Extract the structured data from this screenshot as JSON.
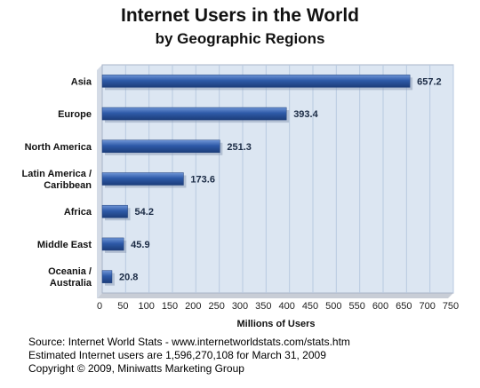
{
  "chart_data": {
    "type": "bar",
    "orientation": "horizontal",
    "title": "Internet Users in the World",
    "subtitle": "by Geographic Regions",
    "xlabel": "Millions of Users",
    "ylabel": "",
    "xlim": [
      0,
      750
    ],
    "x_ticks": [
      0,
      50,
      100,
      150,
      200,
      250,
      300,
      350,
      400,
      450,
      500,
      550,
      600,
      650,
      700,
      750
    ],
    "grid": true,
    "categories": [
      [
        "Asia"
      ],
      [
        "Europe"
      ],
      [
        "North America"
      ],
      [
        "Latin America /",
        "Caribbean"
      ],
      [
        "Africa"
      ],
      [
        "Middle East"
      ],
      [
        "Oceania  /",
        "Australia"
      ]
    ],
    "values": [
      657.2,
      393.4,
      251.3,
      173.6,
      54.2,
      45.9,
      20.8
    ],
    "value_labels": [
      "657.2",
      "393.4",
      "251.3",
      "173.6",
      "54.2",
      "45.9",
      "20.8"
    ],
    "bar_color": "#2e5aa8",
    "plot_background": "#dce6f2",
    "grid_color": "#b9c9e0"
  },
  "footer": {
    "source": "Source: Internet World Stats - www.internetworldstats.com/stats.htm",
    "estimate": "Estimated Internet users are 1,596,270,108 for March 31, 2009",
    "copyright": "Copyright © 2009, Miniwatts Marketing Group"
  }
}
